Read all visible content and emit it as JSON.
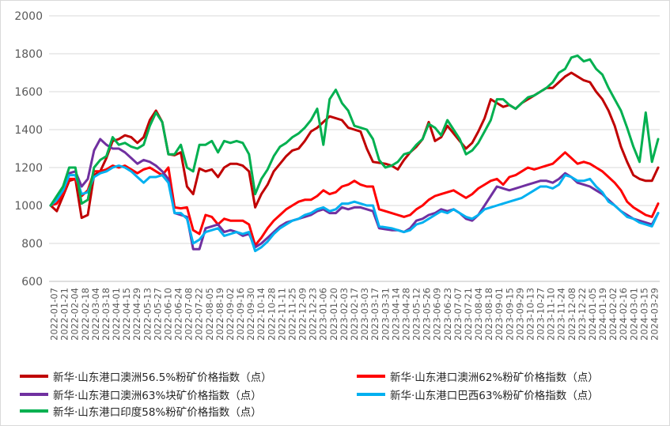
{
  "chart_data": {
    "type": "line",
    "title": "",
    "xlabel": "",
    "ylabel": "",
    "ylim": [
      600,
      2000
    ],
    "yticks": [
      600,
      800,
      1000,
      1200,
      1400,
      1600,
      1800,
      2000
    ],
    "grid": "horizontal",
    "legend_position": "bottom",
    "x_tick_labels": [
      "2022-01-07",
      "2022-01-21",
      "2022-02-04",
      "2022-02-18",
      "2022-03-04",
      "2022-03-18",
      "2022-04-01",
      "2022-04-15",
      "2022-04-29",
      "2022-05-13",
      "2022-05-27",
      "2022-06-10",
      "2022-06-24",
      "2022-07-08",
      "2022-07-22",
      "2022-08-05",
      "2022-08-19",
      "2022-09-02",
      "2022-09-16",
      "2022-09-30",
      "2022-10-14",
      "2022-10-28",
      "2022-11-11",
      "2022-11-25",
      "2022-12-09",
      "2022-12-23",
      "2023-01-06",
      "2023-01-20",
      "2023-02-03",
      "2023-02-17",
      "2023-03-03",
      "2023-03-17",
      "2023-03-31",
      "2023-04-14",
      "2023-04-28",
      "2023-05-12",
      "2023-05-26",
      "2023-06-09",
      "2023-06-23",
      "2023-07-07",
      "2023-07-21",
      "2023-08-04",
      "2023-08-18",
      "2023-09-01",
      "2023-09-15",
      "2023-09-29",
      "2023-10-13",
      "2023-10-27",
      "2023-11-10",
      "2023-11-24",
      "2023-12-08",
      "2023-12-22",
      "2024-01-05",
      "2024-01-19",
      "2024-02-02",
      "2024-02-16",
      "2024-03-01",
      "2024-03-15",
      "2024-03-29"
    ],
    "series": [
      {
        "name": "新华·山东港口澳洲56.5%粉矿价格指数（点）",
        "color": "#c00000",
        "values": [
          1000,
          970,
          1050,
          1130,
          1140,
          935,
          950,
          1160,
          1180,
          1250,
          1340,
          1350,
          1370,
          1360,
          1330,
          1360,
          1450,
          1500,
          1440,
          1270,
          1265,
          1280,
          1100,
          1060,
          1195,
          1180,
          1190,
          1150,
          1200,
          1220,
          1220,
          1210,
          1180,
          990,
          1060,
          1110,
          1180,
          1220,
          1260,
          1290,
          1300,
          1340,
          1390,
          1410,
          1440,
          1470,
          1460,
          1450,
          1410,
          1400,
          1390,
          1300,
          1230,
          1225,
          1220,
          1210,
          1190,
          1240,
          1280,
          1310,
          1350,
          1440,
          1340,
          1360,
          1420,
          1380,
          1340,
          1300,
          1330,
          1390,
          1460,
          1560,
          1540,
          1520,
          1530,
          1510,
          1540,
          1560,
          1580,
          1600,
          1620,
          1620,
          1650,
          1680,
          1700,
          1680,
          1660,
          1650,
          1600,
          1560,
          1500,
          1420,
          1310,
          1230,
          1160,
          1140,
          1130,
          1130,
          1200
        ]
      },
      {
        "name": "新华·山东港口澳洲62%粉矿价格指数（点）",
        "color": "#ff0000",
        "values": [
          1000,
          1010,
          1060,
          1140,
          1140,
          1050,
          1080,
          1180,
          1180,
          1190,
          1210,
          1200,
          1210,
          1190,
          1170,
          1190,
          1200,
          1180,
          1160,
          1200,
          990,
          985,
          990,
          870,
          850,
          950,
          940,
          900,
          930,
          920,
          920,
          920,
          900,
          790,
          830,
          880,
          920,
          950,
          980,
          1000,
          1020,
          1030,
          1030,
          1050,
          1080,
          1060,
          1070,
          1100,
          1110,
          1130,
          1110,
          1100,
          1100,
          980,
          970,
          960,
          950,
          940,
          950,
          980,
          1000,
          1030,
          1050,
          1060,
          1070,
          1080,
          1060,
          1040,
          1060,
          1090,
          1110,
          1130,
          1140,
          1110,
          1150,
          1160,
          1180,
          1200,
          1190,
          1200,
          1210,
          1220,
          1250,
          1280,
          1250,
          1220,
          1230,
          1220,
          1200,
          1180,
          1150,
          1120,
          1080,
          1020,
          990,
          970,
          950,
          940,
          1010
        ]
      },
      {
        "name": "新华·山东港口澳洲63%块矿价格指数（点）",
        "color": "#7030a0",
        "values": [
          1000,
          1030,
          1080,
          1170,
          1180,
          1100,
          1140,
          1290,
          1350,
          1320,
          1300,
          1300,
          1280,
          1250,
          1220,
          1240,
          1230,
          1210,
          1180,
          1140,
          960,
          950,
          940,
          770,
          770,
          880,
          890,
          900,
          860,
          870,
          860,
          840,
          850,
          780,
          800,
          830,
          860,
          890,
          910,
          920,
          930,
          940,
          950,
          970,
          980,
          960,
          960,
          990,
          980,
          990,
          990,
          980,
          970,
          880,
          875,
          870,
          870,
          860,
          880,
          920,
          930,
          950,
          960,
          980,
          970,
          980,
          960,
          930,
          920,
          950,
          1000,
          1050,
          1100,
          1090,
          1080,
          1090,
          1100,
          1110,
          1120,
          1130,
          1130,
          1120,
          1140,
          1170,
          1150,
          1120,
          1110,
          1100,
          1080,
          1060,
          1030,
          1000,
          970,
          950,
          930,
          920,
          910,
          900,
          960
        ]
      },
      {
        "name": "新华·山东港口巴西63%粉矿价格指数（点）",
        "color": "#00b0f0",
        "values": [
          1000,
          1030,
          1080,
          1160,
          1160,
          1060,
          1070,
          1150,
          1170,
          1180,
          1200,
          1210,
          1200,
          1180,
          1150,
          1120,
          1150,
          1150,
          1160,
          1120,
          960,
          960,
          930,
          800,
          820,
          860,
          870,
          880,
          840,
          850,
          860,
          850,
          860,
          760,
          780,
          810,
          850,
          880,
          900,
          920,
          930,
          950,
          960,
          980,
          990,
          970,
          980,
          1010,
          1010,
          1020,
          1010,
          1000,
          1000,
          890,
          885,
          880,
          870,
          860,
          870,
          900,
          910,
          930,
          950,
          970,
          960,
          980,
          960,
          940,
          930,
          950,
          980,
          990,
          1000,
          1010,
          1020,
          1030,
          1040,
          1060,
          1080,
          1100,
          1100,
          1090,
          1110,
          1160,
          1150,
          1130,
          1130,
          1140,
          1100,
          1070,
          1020,
          1000,
          970,
          940,
          930,
          910,
          900,
          890,
          960
        ]
      },
      {
        "name": "新华·山东港口印度58%粉矿价格指数（点）",
        "color": "#00b050",
        "values": [
          1000,
          1050,
          1100,
          1200,
          1200,
          1010,
          1030,
          1200,
          1240,
          1260,
          1360,
          1320,
          1330,
          1310,
          1300,
          1320,
          1420,
          1490,
          1440,
          1270,
          1270,
          1320,
          1200,
          1180,
          1320,
          1320,
          1340,
          1280,
          1340,
          1330,
          1340,
          1330,
          1270,
          1060,
          1140,
          1190,
          1260,
          1310,
          1330,
          1360,
          1380,
          1410,
          1450,
          1510,
          1320,
          1560,
          1610,
          1540,
          1500,
          1420,
          1410,
          1400,
          1350,
          1240,
          1200,
          1210,
          1230,
          1270,
          1280,
          1320,
          1350,
          1430,
          1410,
          1370,
          1450,
          1400,
          1350,
          1270,
          1290,
          1330,
          1390,
          1450,
          1560,
          1560,
          1530,
          1510,
          1540,
          1570,
          1580,
          1600,
          1620,
          1650,
          1700,
          1720,
          1780,
          1790,
          1760,
          1770,
          1720,
          1690,
          1620,
          1560,
          1500,
          1410,
          1310,
          1230,
          1490,
          1230,
          1350
        ]
      }
    ]
  }
}
